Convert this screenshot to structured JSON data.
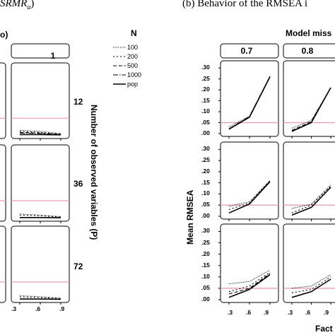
{
  "captions": {
    "left_fragment": "SRMR",
    "left_sub": "u",
    "left_close": ")",
    "right": "(b) Behavior of the RMSEA i"
  },
  "left_panel": {
    "left_edge_label": "o)",
    "n_legend_title": "N",
    "column_strip": "1",
    "row_labels": [
      "12",
      "36",
      "72"
    ],
    "row_axis_title": "Number of observed variables (P)",
    "x_ticks": [
      ".3",
      ".6",
      ".9"
    ]
  },
  "right_panel": {
    "top_strip": "Model miss",
    "col_strips": [
      "0.7",
      "0.8"
    ],
    "y_axis_title": "Mean RMSEA",
    "x_axis_title": "Fact",
    "y_ticks": [
      ".30",
      ".25",
      ".20",
      ".15",
      ".10",
      ".05",
      ".00"
    ],
    "x_ticks": [
      ".3",
      ".6",
      ".9"
    ]
  },
  "legend": [
    {
      "label": "100",
      "dash": "1,1.5"
    },
    {
      "label": "200",
      "dash": "2,3"
    },
    {
      "label": "500",
      "dash": "5,3"
    },
    {
      "label": "1000",
      "dash": "7,2,1.5,2"
    },
    {
      "label": "pop",
      "dash": ""
    }
  ],
  "colors": {
    "reference_line": "#e8a0b4",
    "line": "#000000",
    "panel_border": "#000000"
  },
  "chart_data": [
    {
      "type": "line",
      "title": "",
      "xlabel": "",
      "ylabel": "Mean RMSEA",
      "x": [
        0.3,
        0.6,
        0.9
      ],
      "ylim": [
        0,
        0.32
      ],
      "reference_line": 0.05,
      "facets": [
        {
          "row": 1,
          "col": "0.7",
          "series": [
            {
              "name": "pop",
              "values": [
                0.02,
                0.075,
                0.26
              ]
            },
            {
              "name": "1000",
              "values": [
                0.022,
                0.078,
                0.262
              ]
            },
            {
              "name": "100",
              "values": [
                0.03,
                0.08,
                0.26
              ]
            }
          ]
        },
        {
          "row": 1,
          "col": "0.8",
          "series": [
            {
              "name": "pop",
              "values": [
                0.01,
                0.05,
                0.21
              ]
            },
            {
              "name": "500",
              "values": [
                0.015,
                0.055,
                0.21
              ]
            },
            {
              "name": "100",
              "values": [
                0.025,
                0.06,
                0.21
              ]
            }
          ]
        },
        {
          "row": 2,
          "col": "0.7",
          "series": [
            {
              "name": "pop",
              "values": [
                0.015,
                0.055,
                0.155
              ]
            },
            {
              "name": "200",
              "values": [
                0.03,
                0.06,
                0.16
              ]
            },
            {
              "name": "100",
              "values": [
                0.045,
                0.065,
                0.16
              ]
            }
          ]
        },
        {
          "row": 2,
          "col": "0.8",
          "series": [
            {
              "name": "pop",
              "values": [
                0.005,
                0.04,
                0.13
              ]
            },
            {
              "name": "200",
              "values": [
                0.015,
                0.05,
                0.135
              ]
            },
            {
              "name": "100",
              "values": [
                0.035,
                0.055,
                0.14
              ]
            }
          ]
        },
        {
          "row": 3,
          "col": "0.7",
          "series": [
            {
              "name": "pop",
              "values": [
                0.01,
                0.045,
                0.11
              ]
            },
            {
              "name": "500",
              "values": [
                0.025,
                0.05,
                0.115
              ]
            },
            {
              "name": "200",
              "values": [
                0.035,
                0.06,
                0.12
              ]
            },
            {
              "name": "100",
              "values": [
                0.07,
                0.08,
                0.13
              ]
            }
          ]
        },
        {
          "row": 3,
          "col": "0.8",
          "series": [
            {
              "name": "pop",
              "values": [
                0.01,
                0.035,
                0.09
              ]
            },
            {
              "name": "200",
              "values": [
                0.03,
                0.045,
                0.1
              ]
            },
            {
              "name": "100",
              "values": [
                0.05,
                0.06,
                0.11
              ]
            }
          ]
        }
      ]
    },
    {
      "type": "line",
      "title": "",
      "xlabel": "",
      "ylabel": "",
      "x": [
        0.3,
        0.6,
        0.9
      ],
      "ylim": [
        0,
        0.32
      ],
      "reference_line": 0.08,
      "facets": [
        {
          "row": "12",
          "col": "1",
          "series": [
            {
              "name": "100",
              "values": [
                0.025,
                0.02,
                0.01
              ]
            },
            {
              "name": "200",
              "values": [
                0.02,
                0.015,
                0.008
              ]
            },
            {
              "name": "500",
              "values": [
                0.015,
                0.012,
                0.006
              ]
            },
            {
              "name": "1000",
              "values": [
                0.012,
                0.01,
                0.005
              ]
            },
            {
              "name": "pop",
              "values": [
                0.005,
                0.005,
                0.004
              ]
            }
          ]
        },
        {
          "row": "36",
          "col": "1",
          "series": [
            {
              "name": "100",
              "values": [
                0.02,
                0.015,
                0.008
              ]
            },
            {
              "name": "200",
              "values": [
                0.015,
                0.012,
                0.006
              ]
            },
            {
              "name": "pop",
              "values": [
                0.004,
                0.004,
                0.003
              ]
            }
          ]
        },
        {
          "row": "72",
          "col": "1",
          "series": [
            {
              "name": "100",
              "values": [
                0.018,
                0.013,
                0.007
              ]
            },
            {
              "name": "200",
              "values": [
                0.013,
                0.01,
                0.005
              ]
            },
            {
              "name": "pop",
              "values": [
                0.003,
                0.003,
                0.002
              ]
            }
          ]
        }
      ]
    }
  ]
}
